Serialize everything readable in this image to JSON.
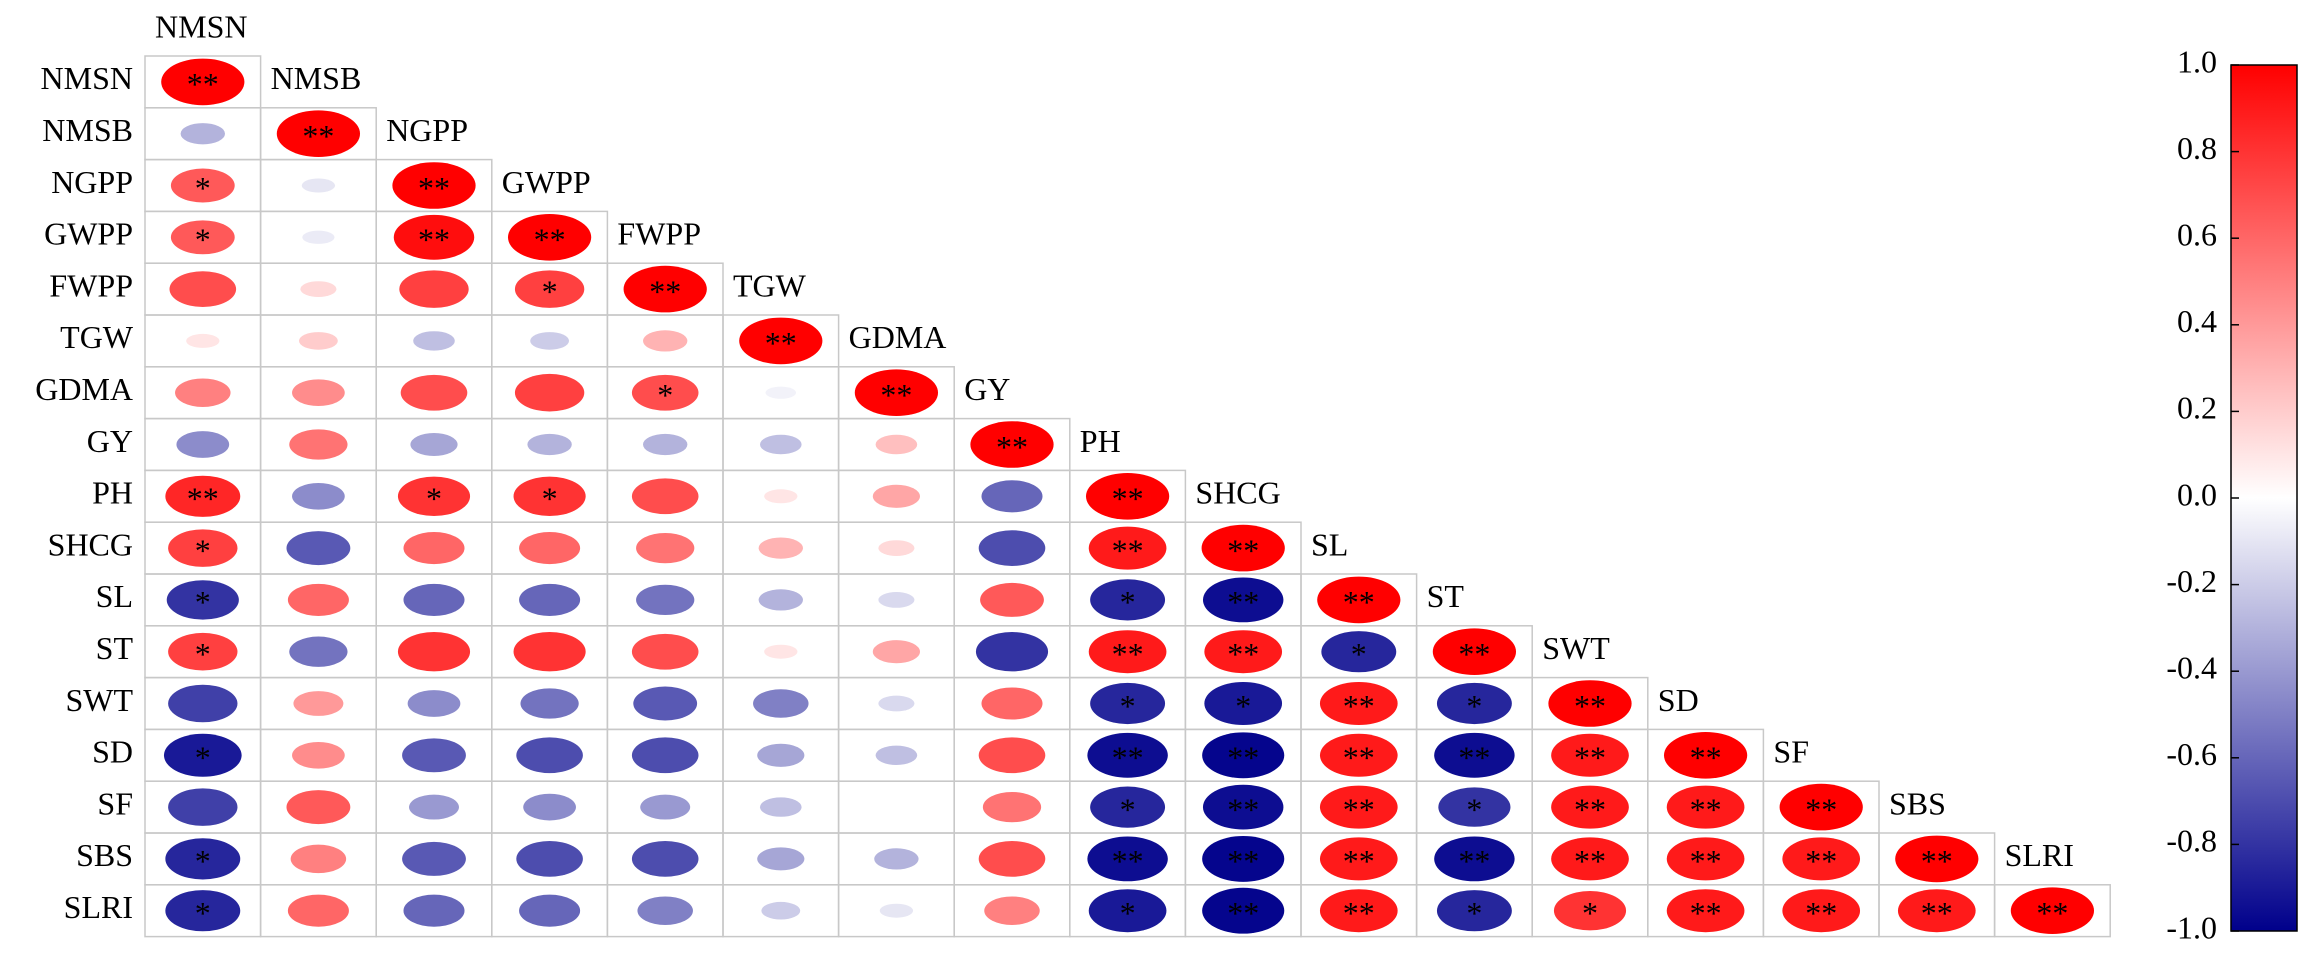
{
  "chart_data": {
    "type": "correlation",
    "variables": [
      "NMSN",
      "NMSB",
      "NGPP",
      "GWPP",
      "FWPP",
      "TGW",
      "GDMA",
      "GY",
      "PH",
      "SHCG",
      "SL",
      "ST",
      "SWT",
      "SD",
      "SF",
      "SBS",
      "SLRI"
    ],
    "values": [
      [
        1
      ],
      [
        -0.3,
        1
      ],
      [
        0.65,
        -0.1,
        1
      ],
      [
        0.65,
        -0.08,
        0.95,
        1
      ],
      [
        0.7,
        0.15,
        0.75,
        0.75,
        1
      ],
      [
        0.1,
        0.2,
        -0.25,
        -0.2,
        0.3,
        1
      ],
      [
        0.5,
        0.45,
        0.7,
        0.75,
        0.7,
        -0.05,
        1
      ],
      [
        -0.45,
        0.55,
        -0.35,
        -0.3,
        -0.3,
        -0.25,
        0.25,
        1
      ],
      [
        0.85,
        -0.45,
        0.8,
        0.8,
        0.7,
        0.1,
        0.35,
        -0.6,
        1
      ],
      [
        0.75,
        -0.65,
        0.6,
        0.6,
        0.55,
        0.3,
        0.15,
        -0.7,
        0.9,
        1
      ],
      [
        -0.8,
        0.6,
        -0.6,
        -0.6,
        -0.55,
        -0.3,
        -0.15,
        0.65,
        -0.85,
        -0.95,
        1
      ],
      [
        0.75,
        -0.55,
        0.8,
        0.8,
        0.7,
        0.1,
        0.35,
        -0.8,
        0.9,
        0.9,
        -0.85,
        1
      ],
      [
        -0.75,
        0.4,
        -0.45,
        -0.55,
        -0.65,
        -0.5,
        -0.15,
        0.6,
        -0.85,
        -0.9,
        0.9,
        -0.85,
        1
      ],
      [
        -0.9,
        0.45,
        -0.65,
        -0.7,
        -0.7,
        -0.35,
        -0.25,
        0.7,
        -0.95,
        -0.98,
        0.9,
        -0.95,
        0.9,
        1
      ],
      [
        -0.75,
        0.65,
        -0.4,
        -0.45,
        -0.4,
        -0.25,
        0,
        0.55,
        -0.85,
        -0.95,
        0.9,
        -0.8,
        0.9,
        0.9,
        1
      ],
      [
        -0.85,
        0.5,
        -0.65,
        -0.7,
        -0.7,
        -0.35,
        -0.3,
        0.7,
        -0.95,
        -0.98,
        0.9,
        -0.95,
        0.9,
        0.9,
        0.9,
        1
      ],
      [
        -0.85,
        0.6,
        -0.6,
        -0.6,
        -0.5,
        -0.2,
        -0.1,
        0.5,
        -0.9,
        -0.98,
        0.9,
        -0.85,
        0.8,
        0.9,
        0.9,
        0.9,
        1
      ]
    ],
    "stars": [
      [
        "**"
      ],
      [
        null,
        "**"
      ],
      [
        "*",
        null,
        "**"
      ],
      [
        "*",
        null,
        "**",
        "**"
      ],
      [
        null,
        null,
        null,
        "*",
        "**"
      ],
      [
        null,
        null,
        null,
        null,
        null,
        "**"
      ],
      [
        null,
        null,
        null,
        null,
        "*",
        null,
        "**"
      ],
      [
        null,
        null,
        null,
        null,
        null,
        null,
        null,
        "**"
      ],
      [
        "**",
        null,
        "*",
        "*",
        null,
        null,
        null,
        null,
        "**"
      ],
      [
        "*",
        null,
        null,
        null,
        null,
        null,
        null,
        null,
        "**",
        "**"
      ],
      [
        "*",
        null,
        null,
        null,
        null,
        null,
        null,
        null,
        "*",
        "**",
        "**"
      ],
      [
        "*",
        null,
        null,
        null,
        null,
        null,
        null,
        null,
        "**",
        "**",
        "*",
        "**"
      ],
      [
        null,
        null,
        null,
        null,
        null,
        null,
        null,
        null,
        "*",
        "*",
        "**",
        "*",
        "**"
      ],
      [
        "*",
        null,
        null,
        null,
        null,
        null,
        null,
        null,
        "**",
        "**",
        "**",
        "**",
        "**",
        "**"
      ],
      [
        null,
        null,
        null,
        null,
        null,
        null,
        null,
        null,
        "*",
        "**",
        "**",
        "*",
        "**",
        "**",
        "**"
      ],
      [
        "*",
        null,
        null,
        null,
        null,
        null,
        null,
        null,
        "**",
        "**",
        "**",
        "**",
        "**",
        "**",
        "**",
        "**"
      ],
      [
        "*",
        null,
        null,
        null,
        null,
        null,
        null,
        null,
        "*",
        "**",
        "**",
        "*",
        "*",
        "**",
        "**",
        "**",
        "**"
      ]
    ],
    "colormap": [
      "#00008b",
      "#ffffff",
      "#ff0000"
    ],
    "clim": [
      -1,
      1
    ],
    "cticks": [
      {
        "value": -1,
        "label": "-1.0"
      },
      -0.8,
      -0.6,
      -0.4,
      -0.2,
      {
        "value": 0,
        "label": "0.0"
      },
      0.2,
      0.4,
      0.6,
      0.8,
      {
        "value": 1,
        "label": "1.0"
      }
    ]
  }
}
